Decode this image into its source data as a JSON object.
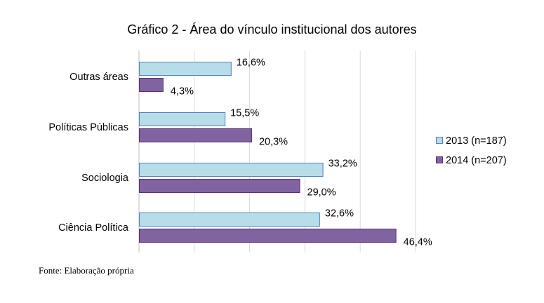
{
  "chart_data": {
    "type": "bar",
    "orientation": "horizontal",
    "title": "Gráfico 2 - Área do vínculo institucional dos autores",
    "categories": [
      "Outras áreas",
      "Políticas Públicas",
      "Sociologia",
      "Ciência Política"
    ],
    "series": [
      {
        "name": "2013 (n=187)",
        "values": [
          16.6,
          15.5,
          33.2,
          32.6
        ],
        "labels": [
          "16,6%",
          "15,5%",
          "33,2%",
          "32,6%"
        ],
        "fill": "#b7dde8",
        "stroke": "#4f81bd"
      },
      {
        "name": "2014 (n=207)",
        "values": [
          4.3,
          20.3,
          29.0,
          46.4
        ],
        "labels": [
          "4,3%",
          "20,3%",
          "29,0%",
          "46,4%"
        ],
        "fill": "#8064a2",
        "stroke": "#5f2d72"
      }
    ],
    "xlim": [
      0,
      50
    ],
    "xlabel": "",
    "ylabel": "",
    "grid": "vertical",
    "gridline_step": 10,
    "tick_labels_visible": false,
    "legend_position": "right"
  },
  "source_note": "Fonte: Elaboração própria"
}
